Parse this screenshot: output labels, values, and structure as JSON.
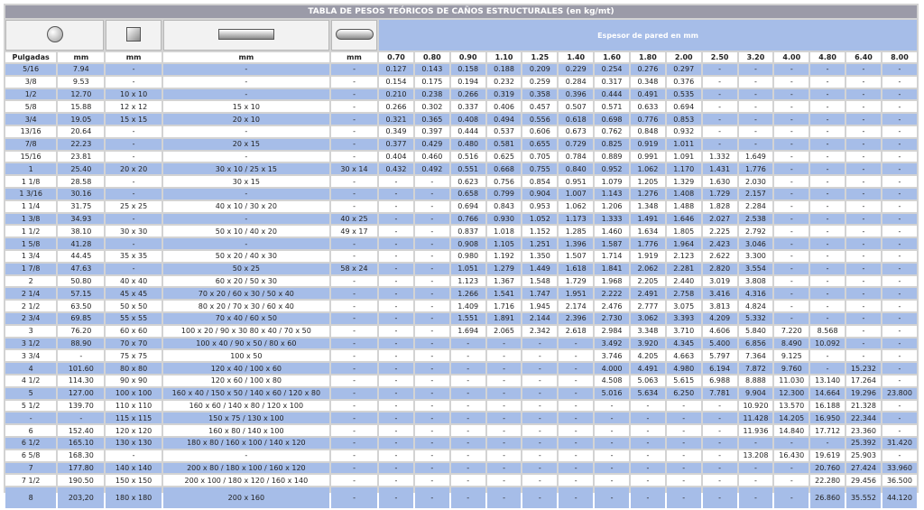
{
  "title": "TABLA DE PESOS TEÓRICOS DE CAÑOS ESTRUCTURALES (en kg/mt)",
  "espesor_label": "Espesor de pared en mm",
  "icons": [
    "round-tube-icon",
    "square-tube-icon",
    "rectangular-tube-icon",
    "oval-tube-icon"
  ],
  "headers": [
    "Pulgadas",
    "mm",
    "mm",
    "mm",
    "mm",
    "0.70",
    "0.80",
    "0.90",
    "1.10",
    "1.25",
    "1.40",
    "1.60",
    "1.80",
    "2.00",
    "2.50",
    "3.20",
    "4.00",
    "4.80",
    "6.40",
    "8.00"
  ],
  "rows": [
    [
      "5/16",
      "7.94",
      "-",
      "-",
      "-",
      "0.127",
      "0.143",
      "0.158",
      "0.188",
      "0.209",
      "0.229",
      "0.254",
      "0.276",
      "0.297",
      "-",
      "-",
      "-",
      "-",
      "-",
      "-"
    ],
    [
      "3/8",
      "9.53",
      "-",
      "-",
      "-",
      "0.154",
      "0.175",
      "0.194",
      "0.232",
      "0.259",
      "0.284",
      "0.317",
      "0.348",
      "0.376",
      "-",
      "-",
      "-",
      "-",
      "-",
      "-"
    ],
    [
      "1/2",
      "12.70",
      "10 x 10",
      "-",
      "-",
      "0.210",
      "0.238",
      "0.266",
      "0.319",
      "0.358",
      "0.396",
      "0.444",
      "0.491",
      "0.535",
      "-",
      "-",
      "-",
      "-",
      "-",
      "-"
    ],
    [
      "5/8",
      "15.88",
      "12 x 12",
      "15 x 10",
      "-",
      "0.266",
      "0.302",
      "0.337",
      "0.406",
      "0.457",
      "0.507",
      "0.571",
      "0.633",
      "0.694",
      "-",
      "-",
      "-",
      "-",
      "-",
      "-"
    ],
    [
      "3/4",
      "19.05",
      "15 x 15",
      "20 x 10",
      "-",
      "0.321",
      "0.365",
      "0.408",
      "0.494",
      "0.556",
      "0.618",
      "0.698",
      "0.776",
      "0.853",
      "-",
      "-",
      "-",
      "-",
      "-",
      "-"
    ],
    [
      "13/16",
      "20.64",
      "-",
      "-",
      "-",
      "0.349",
      "0.397",
      "0.444",
      "0.537",
      "0.606",
      "0.673",
      "0.762",
      "0.848",
      "0.932",
      "-",
      "-",
      "-",
      "-",
      "-",
      "-"
    ],
    [
      "7/8",
      "22.23",
      "-",
      "20 x 15",
      "-",
      "0.377",
      "0.429",
      "0.480",
      "0.581",
      "0.655",
      "0.729",
      "0.825",
      "0.919",
      "1.011",
      "-",
      "-",
      "-",
      "-",
      "-",
      "-"
    ],
    [
      "15/16",
      "23.81",
      "-",
      "-",
      "-",
      "0.404",
      "0.460",
      "0.516",
      "0.625",
      "0.705",
      "0.784",
      "0.889",
      "0.991",
      "1.091",
      "1.332",
      "1.649",
      "-",
      "-",
      "-",
      "-"
    ],
    [
      "1",
      "25.40",
      "20 x 20",
      "30 x 10 / 25 x 15",
      "30 x 14",
      "0.432",
      "0.492",
      "0.551",
      "0.668",
      "0.755",
      "0.840",
      "0.952",
      "1.062",
      "1.170",
      "1.431",
      "1.776",
      "-",
      "-",
      "-",
      "-"
    ],
    [
      "1 1/8",
      "28.58",
      "-",
      "30 x 15",
      "-",
      "-",
      "-",
      "0.623",
      "0.756",
      "0.854",
      "0.951",
      "1.079",
      "1.205",
      "1.329",
      "1.630",
      "2.030",
      "-",
      "-",
      "-",
      "-"
    ],
    [
      "1 3/16",
      "30.16",
      "-",
      "-",
      "-",
      "-",
      "-",
      "0.658",
      "0.799",
      "0.904",
      "1.007",
      "1.143",
      "1.276",
      "1.408",
      "1.729",
      "2.157",
      "-",
      "-",
      "-",
      "-"
    ],
    [
      "1 1/4",
      "31.75",
      "25 x 25",
      "40 x 10 / 30 x 20",
      "-",
      "-",
      "-",
      "0.694",
      "0.843",
      "0.953",
      "1.062",
      "1.206",
      "1.348",
      "1.488",
      "1.828",
      "2.284",
      "-",
      "-",
      "-",
      "-"
    ],
    [
      "1 3/8",
      "34.93",
      "-",
      "-",
      "40 x 25",
      "-",
      "-",
      "0.766",
      "0.930",
      "1.052",
      "1.173",
      "1.333",
      "1.491",
      "1.646",
      "2.027",
      "2.538",
      "-",
      "-",
      "-",
      "-"
    ],
    [
      "1 1/2",
      "38.10",
      "30 x 30",
      "50 x 10 / 40 x 20",
      "49 x 17",
      "-",
      "-",
      "0.837",
      "1.018",
      "1.152",
      "1.285",
      "1.460",
      "1.634",
      "1.805",
      "2.225",
      "2.792",
      "-",
      "-",
      "-",
      "-"
    ],
    [
      "1 5/8",
      "41.28",
      "-",
      "-",
      "-",
      "-",
      "-",
      "0.908",
      "1.105",
      "1.251",
      "1.396",
      "1.587",
      "1.776",
      "1.964",
      "2.423",
      "3.046",
      "-",
      "-",
      "-",
      "-"
    ],
    [
      "1 3/4",
      "44.45",
      "35 x 35",
      "50 x 20 / 40 x 30",
      "-",
      "-",
      "-",
      "0.980",
      "1.192",
      "1.350",
      "1.507",
      "1.714",
      "1.919",
      "2.123",
      "2.622",
      "3.300",
      "-",
      "-",
      "-",
      "-"
    ],
    [
      "1 7/8",
      "47.63",
      "-",
      "50 x 25",
      "58 x 24",
      "-",
      "-",
      "1.051",
      "1.279",
      "1.449",
      "1.618",
      "1.841",
      "2.062",
      "2.281",
      "2.820",
      "3.554",
      "-",
      "-",
      "-",
      "-"
    ],
    [
      "2",
      "50.80",
      "40 x 40",
      "60 x 20 / 50 x 30",
      "-",
      "-",
      "-",
      "1.123",
      "1.367",
      "1.548",
      "1.729",
      "1.968",
      "2.205",
      "2.440",
      "3.019",
      "3.808",
      "-",
      "-",
      "-",
      "-"
    ],
    [
      "2 1/4",
      "57.15",
      "45 x 45",
      "70 x 20 / 60 x 30 / 50 x 40",
      "-",
      "-",
      "-",
      "1.266",
      "1.541",
      "1.747",
      "1.951",
      "2.222",
      "2.491",
      "2.758",
      "3.416",
      "4.316",
      "-",
      "-",
      "-",
      "-"
    ],
    [
      "2 1/2",
      "63.50",
      "50 x 50",
      "80 x 20 / 70 x 30 / 60 x 40",
      "-",
      "-",
      "-",
      "1.409",
      "1.716",
      "1.945",
      "2.174",
      "2.476",
      "2.777",
      "3.075",
      "3.813",
      "4.824",
      "-",
      "-",
      "-",
      "-"
    ],
    [
      "2 3/4",
      "69.85",
      "55 x 55",
      "70 x 40 / 60 x 50",
      "-",
      "-",
      "-",
      "1.551",
      "1.891",
      "2.144",
      "2.396",
      "2.730",
      "3.062",
      "3.393",
      "4.209",
      "5.332",
      "-",
      "-",
      "-",
      "-"
    ],
    [
      "3",
      "76.20",
      "60 x 60",
      "100 x 20 / 90 x 30 80 x 40 / 70 x 50",
      "-",
      "-",
      "-",
      "1.694",
      "2.065",
      "2.342",
      "2.618",
      "2.984",
      "3.348",
      "3.710",
      "4.606",
      "5.840",
      "7.220",
      "8.568",
      "-",
      "-"
    ],
    [
      "3 1/2",
      "88.90",
      "70 x 70",
      "100 x 40 / 90 x 50 / 80 x 60",
      "-",
      "-",
      "-",
      "-",
      "-",
      "-",
      "-",
      "3.492",
      "3.920",
      "4.345",
      "5.400",
      "6.856",
      "8.490",
      "10.092",
      "-",
      "-"
    ],
    [
      "3 3/4",
      "-",
      "75 x 75",
      "100 x 50",
      "-",
      "-",
      "-",
      "-",
      "-",
      "-",
      "-",
      "3.746",
      "4.205",
      "4.663",
      "5.797",
      "7.364",
      "9.125",
      "-",
      "-",
      "-"
    ],
    [
      "4",
      "101.60",
      "80 x 80",
      "120 x 40 / 100 x 60",
      "-",
      "-",
      "-",
      "-",
      "-",
      "-",
      "-",
      "4.000",
      "4.491",
      "4.980",
      "6.194",
      "7.872",
      "9.760",
      "-",
      "15.232",
      "-"
    ],
    [
      "4 1/2",
      "114.30",
      "90 x 90",
      "120 x 60 / 100 x 80",
      "-",
      "-",
      "-",
      "-",
      "-",
      "-",
      "-",
      "4.508",
      "5.063",
      "5.615",
      "6.988",
      "8.888",
      "11.030",
      "13.140",
      "17.264",
      "-"
    ],
    [
      "5",
      "127.00",
      "100 x 100",
      "160 x 40 / 150 x 50 / 140 x 60 / 120 x 80",
      "-",
      "-",
      "-",
      "-",
      "-",
      "-",
      "-",
      "5.016",
      "5.634",
      "6.250",
      "7.781",
      "9.904",
      "12.300",
      "14.664",
      "19.296",
      "23.800"
    ],
    [
      "5 1/2",
      "139.70",
      "110 x 110",
      "160 x 60 / 140 x 80 / 120 x 100",
      "-",
      "-",
      "-",
      "-",
      "-",
      "-",
      "-",
      "-",
      "-",
      "-",
      "-",
      "10.920",
      "13.570",
      "16.188",
      "21.328",
      "-"
    ],
    [
      "-",
      "-",
      "115 x 115",
      "150 x 75 / 130 x 100",
      "-",
      "-",
      "-",
      "-",
      "-",
      "-",
      "-",
      "-",
      "-",
      "-",
      "-",
      "11.428",
      "14.205",
      "16.950",
      "22.344",
      "-"
    ],
    [
      "6",
      "152.40",
      "120 x 120",
      "160 x 80 / 140 x 100",
      "-",
      "-",
      "-",
      "-",
      "-",
      "-",
      "-",
      "-",
      "-",
      "-",
      "-",
      "11.936",
      "14.840",
      "17.712",
      "23.360",
      "-"
    ],
    [
      "6 1/2",
      "165.10",
      "130 x 130",
      "180 x 80 / 160 x 100 / 140 x 120",
      "-",
      "-",
      "-",
      "-",
      "-",
      "-",
      "-",
      "-",
      "-",
      "-",
      "-",
      "-",
      "-",
      "-",
      "25.392",
      "31.420"
    ],
    [
      "6 5/8",
      "168.30",
      "-",
      "-",
      "-",
      "-",
      "-",
      "-",
      "-",
      "-",
      "-",
      "-",
      "-",
      "-",
      "-",
      "13.208",
      "16.430",
      "19.619",
      "25.903",
      "-"
    ],
    [
      "7",
      "177.80",
      "140 x 140",
      "200 x 80 / 180 x 100 / 160 x 120",
      "-",
      "-",
      "-",
      "-",
      "-",
      "-",
      "-",
      "-",
      "-",
      "-",
      "-",
      "-",
      "-",
      "20.760",
      "27.424",
      "33.960"
    ],
    [
      "7 1/2",
      "190.50",
      "150 x 150",
      "200 x 100 / 180 x 120 / 160 x 140",
      "-",
      "-",
      "-",
      "-",
      "-",
      "-",
      "-",
      "-",
      "-",
      "-",
      "-",
      "-",
      "-",
      "22.280",
      "29.456",
      "36.500"
    ],
    [
      "8",
      "203,20",
      "180 x 180",
      "200 x 160",
      "-",
      "-",
      "-",
      "-",
      "-",
      "-",
      "-",
      "-",
      "-",
      "-",
      "-",
      "-",
      "-",
      "26.860",
      "35.552",
      "44.120"
    ]
  ]
}
